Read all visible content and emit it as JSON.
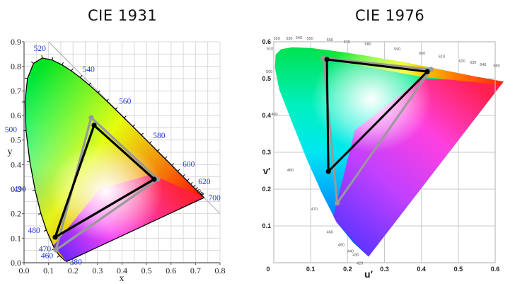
{
  "chart_data": [
    {
      "type": "scatter",
      "title": "CIE 1931",
      "xlabel": "x",
      "ylabel": "y",
      "xlim": [
        0.0,
        0.8
      ],
      "ylim": [
        0.0,
        0.9
      ],
      "x_ticks": [
        "0.0",
        "0.1",
        "0.2",
        "0.3",
        "0.4",
        "0.5",
        "0.6",
        "0.7",
        "0.8"
      ],
      "y_ticks": [
        "0.0",
        "0.1",
        "0.2",
        "0.3",
        "0.4",
        "0.5",
        "0.6",
        "0.7",
        "0.8",
        "0.9"
      ],
      "grid": true,
      "grid_step": 0.05,
      "wavelength_labels": [
        {
          "nm": "380",
          "x": 0.175,
          "y": 0.005
        },
        {
          "nm": "460",
          "x": 0.144,
          "y": 0.03
        },
        {
          "nm": "470",
          "x": 0.124,
          "y": 0.058
        },
        {
          "nm": "480",
          "x": 0.091,
          "y": 0.133
        },
        {
          "nm": "490",
          "x": 0.045,
          "y": 0.295
        },
        {
          "nm": "500",
          "x": 0.008,
          "y": 0.538
        },
        {
          "nm": "520",
          "x": 0.074,
          "y": 0.834
        },
        {
          "nm": "540",
          "x": 0.23,
          "y": 0.754
        },
        {
          "nm": "560",
          "x": 0.373,
          "y": 0.624
        },
        {
          "nm": "580",
          "x": 0.512,
          "y": 0.487
        },
        {
          "nm": "600",
          "x": 0.627,
          "y": 0.373
        },
        {
          "nm": "620",
          "x": 0.691,
          "y": 0.308
        },
        {
          "nm": "700",
          "x": 0.735,
          "y": 0.265
        }
      ],
      "series": [
        {
          "name": "black-gamut",
          "color": "#000000",
          "points": [
            [
              0.531,
              0.34
            ],
            [
              0.286,
              0.56
            ],
            [
              0.127,
              0.104
            ]
          ]
        },
        {
          "name": "gray-gamut",
          "color": "#999999",
          "points": [
            [
              0.546,
              0.34
            ],
            [
              0.274,
              0.591
            ],
            [
              0.13,
              0.052
            ]
          ]
        }
      ]
    },
    {
      "type": "scatter",
      "title": "CIE 1976",
      "xlabel": "u′",
      "ylabel": "v′",
      "xlim": [
        0.0,
        0.6
      ],
      "ylim": [
        0.0,
        0.6
      ],
      "x_ticks": [
        "0",
        "0.1",
        "0.2",
        "0.3",
        "0.4",
        "0.5",
        "0.6"
      ],
      "y_ticks": [
        "0",
        "0.1",
        "0.2",
        "0.3",
        "0.4",
        "0.5",
        "0.6"
      ],
      "grid": true,
      "grid_step": 0.1,
      "wavelength_labels": [
        {
          "nm": "420",
          "x": 0.233,
          "y": -0.005
        },
        {
          "nm": "430",
          "x": 0.222,
          "y": 0.018
        },
        {
          "nm": "440",
          "x": 0.208,
          "y": 0.028
        },
        {
          "nm": "450",
          "x": 0.183,
          "y": 0.045
        },
        {
          "nm": "460",
          "x": 0.152,
          "y": 0.08
        },
        {
          "nm": "470",
          "x": 0.11,
          "y": 0.142
        },
        {
          "nm": "480",
          "x": 0.045,
          "y": 0.248
        },
        {
          "nm": "490",
          "x": 0.002,
          "y": 0.4
        },
        {
          "nm": "500",
          "x": -0.012,
          "y": 0.515
        },
        {
          "nm": "510",
          "x": -0.01,
          "y": 0.578
        },
        {
          "nm": "520",
          "x": 0.008,
          "y": 0.606
        },
        {
          "nm": "530",
          "x": 0.042,
          "y": 0.606
        },
        {
          "nm": "540",
          "x": 0.068,
          "y": 0.608
        },
        {
          "nm": "550",
          "x": 0.098,
          "y": 0.606
        },
        {
          "nm": "560",
          "x": 0.152,
          "y": 0.602
        },
        {
          "nm": "570",
          "x": 0.198,
          "y": 0.596
        },
        {
          "nm": "580",
          "x": 0.255,
          "y": 0.59
        },
        {
          "nm": "590",
          "x": 0.335,
          "y": 0.577
        },
        {
          "nm": "600",
          "x": 0.402,
          "y": 0.565
        },
        {
          "nm": "610",
          "x": 0.455,
          "y": 0.557
        },
        {
          "nm": "620",
          "x": 0.51,
          "y": 0.544
        },
        {
          "nm": "630",
          "x": 0.54,
          "y": 0.54
        },
        {
          "nm": "640",
          "x": 0.567,
          "y": 0.535
        },
        {
          "nm": "680",
          "x": 0.604,
          "y": 0.532
        }
      ],
      "series": [
        {
          "name": "black-gamut",
          "color": "#000000",
          "points": [
            [
              0.416,
              0.519
            ],
            [
              0.144,
              0.552
            ],
            [
              0.148,
              0.248
            ]
          ]
        },
        {
          "name": "gray-gamut",
          "color": "#999999",
          "points": [
            [
              0.426,
              0.525
            ],
            [
              0.134,
              0.556
            ],
            [
              0.172,
              0.162
            ]
          ]
        }
      ]
    }
  ]
}
